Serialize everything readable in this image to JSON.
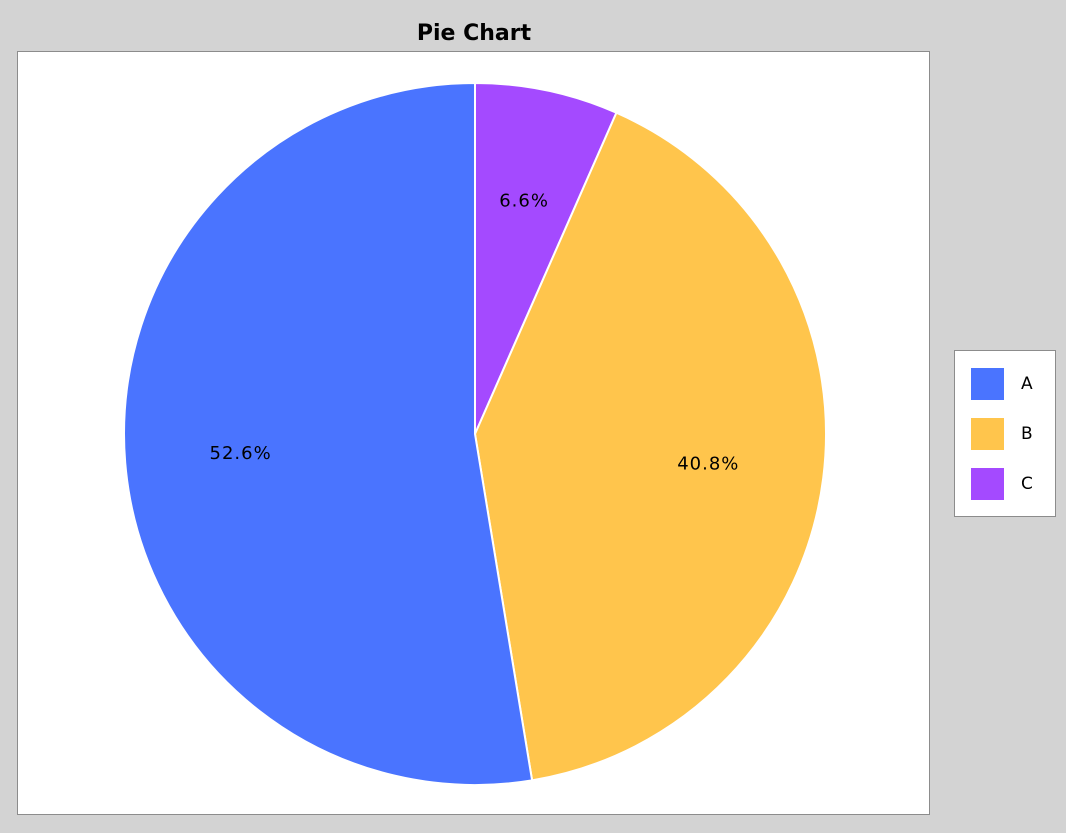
{
  "chart_data": {
    "type": "pie",
    "title": "Pie Chart",
    "categories": [
      "A",
      "B",
      "C"
    ],
    "values": [
      52.6,
      40.8,
      6.6
    ],
    "labels": [
      "52.6%",
      "40.8%",
      "6.6%"
    ],
    "colors": [
      "#4a74ff",
      "#ffc54c",
      "#a44aff"
    ],
    "start_angle_deg": 90,
    "direction": "clockwise_from_C",
    "legend": "right"
  }
}
